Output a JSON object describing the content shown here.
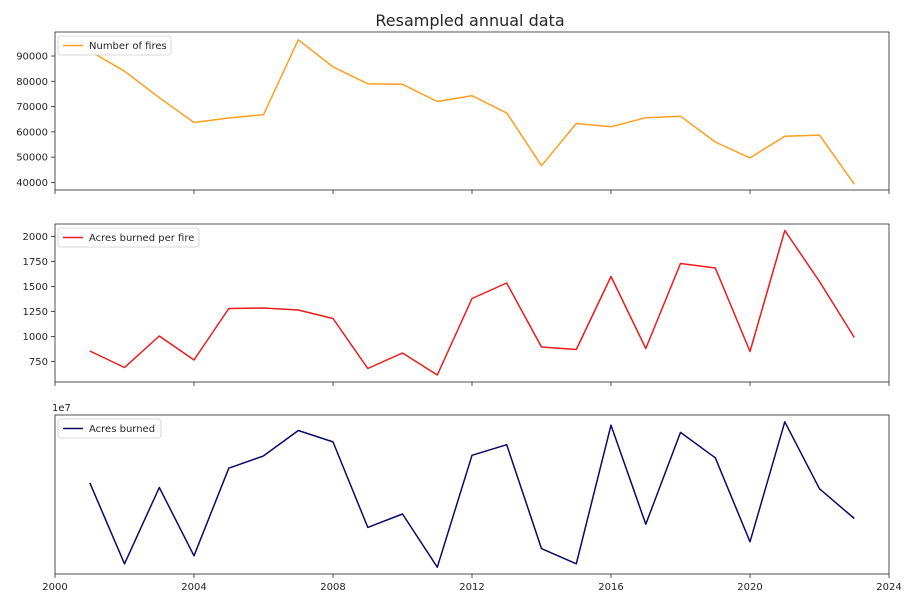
{
  "chart_data": {
    "type": "line",
    "title": "Resampled annual data",
    "x": [
      2001,
      2002,
      2003,
      2004,
      2005,
      2006,
      2007,
      2008,
      2009,
      2010,
      2011,
      2012,
      2013,
      2014,
      2015,
      2016,
      2017,
      2018,
      2019,
      2020,
      2021,
      2022,
      2023
    ],
    "xlim": [
      2000,
      2024
    ],
    "xticks": [
      2000,
      2004,
      2008,
      2012,
      2016,
      2020,
      2024
    ],
    "subplots": [
      {
        "legend": "Number of fires",
        "legend_loc": "upper-left",
        "color": "#ff9e1f",
        "ylim": [
          37000,
          99500
        ],
        "yticks": [
          40000,
          50000,
          60000,
          70000,
          80000,
          90000
        ],
        "offset_label": "",
        "values": [
          92000,
          84000,
          73500,
          63700,
          65500,
          66800,
          96400,
          85700,
          79000,
          78800,
          72000,
          74300,
          67500,
          46600,
          63300,
          62000,
          65600,
          66200,
          56000,
          49700,
          58300,
          58700,
          39300
        ]
      },
      {
        "legend": "Acres burned per fire",
        "legend_loc": "upper-left",
        "color": "#ed1a1a",
        "ylim": [
          545,
          2125
        ],
        "yticks": [
          750,
          1000,
          1250,
          1500,
          1750,
          2000
        ],
        "offset_label": "",
        "values": [
          855,
          690,
          1005,
          765,
          1280,
          1285,
          1265,
          1180,
          680,
          835,
          615,
          1380,
          1535,
          895,
          870,
          1600,
          880,
          1730,
          1685,
          850,
          2060,
          1550,
          990
        ]
      },
      {
        "legend": "Acres burned",
        "legend_loc": "upper-left",
        "color": "#0a0a66",
        "ylim": [
          3.1,
          10.6
        ],
        "yticks": [
          0.4,
          0.6,
          0.8,
          1.0
        ],
        "offset_label": "1e7",
        "values": [
          7.4,
          3.58,
          7.18,
          3.96,
          8.09,
          8.67,
          9.87,
          9.33,
          5.3,
          5.93,
          3.42,
          8.7,
          9.2,
          4.3,
          3.58,
          10.12,
          5.45,
          9.78,
          8.58,
          4.62,
          10.28,
          7.12,
          5.72
        ]
      }
    ]
  }
}
